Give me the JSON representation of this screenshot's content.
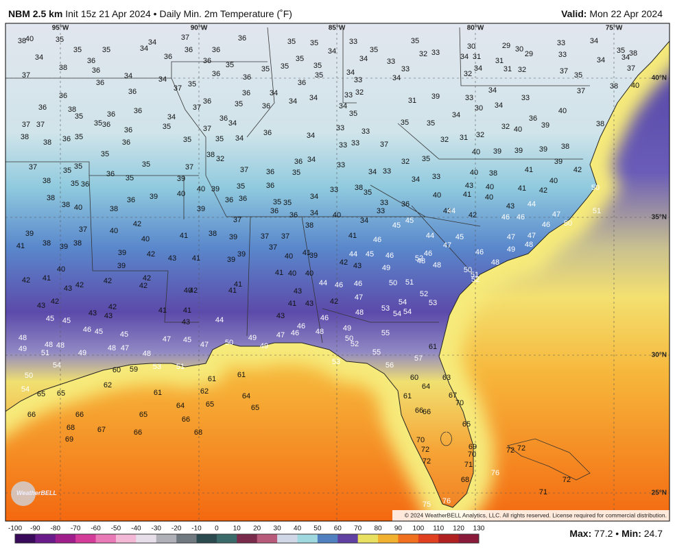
{
  "header": {
    "title": "NBM 2.5 km",
    "subtitle": "Init 15z 21 Apr 2024 • Daily Min. 2m Temperature (˚F)",
    "valid_label": "Valid:",
    "valid_date": "Mon 22 Apr 2024"
  },
  "map": {
    "longitude_labels": [
      "95°W",
      "90°W",
      "85°W",
      "80°W",
      "75°W"
    ],
    "latitude_labels": [
      "40°N",
      "35°N",
      "30°N",
      "25°N"
    ],
    "stations": [
      35,
      38,
      40,
      35,
      35,
      34,
      34,
      37,
      36,
      35,
      35,
      33,
      35,
      35,
      33,
      32,
      30,
      29,
      30,
      29,
      33,
      34,
      35,
      38,
      34,
      38,
      36,
      36,
      34,
      36,
      36,
      36,
      35,
      36,
      35,
      35,
      35,
      35,
      34,
      34,
      33,
      33,
      34,
      34,
      31,
      34,
      31,
      32,
      34,
      31,
      32,
      34,
      33,
      37,
      35,
      34,
      37,
      38,
      40,
      37,
      36,
      36,
      36,
      34,
      37,
      35,
      36,
      36,
      33,
      33,
      34,
      34,
      34,
      36,
      35,
      32,
      31,
      39,
      33,
      34,
      36,
      38,
      35,
      36,
      36,
      35,
      36,
      36,
      34,
      35,
      37,
      36,
      35,
      36,
      34,
      36,
      37,
      36,
      35,
      34,
      33,
      35,
      35,
      34,
      30,
      34,
      33,
      37,
      36,
      39,
      40,
      38,
      32,
      40,
      37,
      37,
      38,
      38,
      36,
      35,
      36,
      35,
      35,
      34,
      36,
      34,
      33,
      33,
      33,
      37,
      32,
      31,
      32,
      40,
      39,
      39,
      39,
      38,
      37,
      35,
      35,
      35,
      35,
      37,
      36,
      35,
      38,
      32,
      37,
      36,
      35,
      36,
      34,
      33,
      34,
      33,
      32,
      35,
      38,
      40,
      41,
      39,
      42,
      38,
      35,
      36,
      39,
      40,
      39,
      35,
      36,
      34,
      33,
      38,
      35,
      34,
      33,
      43,
      40,
      41,
      40,
      42,
      50,
      38,
      38,
      40,
      38,
      36,
      39,
      40,
      39,
      36,
      36,
      35,
      35,
      36,
      36,
      34,
      40,
      33,
      33,
      36,
      40,
      41,
      40,
      43,
      44,
      42,
      46,
      46,
      43,
      44,
      47,
      46,
      50,
      51,
      39,
      38,
      37,
      40,
      42,
      37,
      37,
      37,
      37,
      38,
      39,
      38,
      41,
      40,
      39,
      39,
      42,
      43,
      41,
      39,
      39,
      41,
      39,
      38,
      34,
      45,
      45,
      46,
      41,
      44,
      47,
      45,
      46,
      47,
      47,
      49,
      48,
      48,
      49,
      46,
      44,
      45,
      42,
      43,
      52,
      48,
      46,
      48,
      50,
      51,
      52,
      40,
      41,
      39,
      41,
      40,
      40,
      44,
      46,
      46,
      47,
      50,
      51,
      52,
      53,
      54,
      53,
      54,
      54,
      40,
      42,
      41,
      43,
      42,
      42,
      42,
      42,
      40,
      42,
      41,
      41,
      43,
      41,
      43,
      42,
      48,
      43,
      42,
      45,
      45,
      43,
      42,
      43,
      41,
      41,
      43,
      44,
      43,
      46,
      46,
      46,
      47,
      48,
      49,
      50,
      52,
      55,
      48,
      49,
      48,
      48,
      51,
      49,
      46,
      45,
      45,
      48,
      47,
      48,
      47,
      45,
      47,
      50,
      49,
      49,
      55,
      53,
      56,
      57,
      61,
      50,
      54,
      54,
      60,
      59,
      53,
      51,
      62,
      61,
      62,
      61,
      61,
      64,
      65,
      64,
      65,
      65,
      65,
      66,
      66,
      65,
      66,
      68,
      67,
      66,
      68,
      69,
      60,
      64,
      63,
      61,
      66,
      66,
      67,
      70,
      65,
      70,
      72,
      72,
      69,
      70,
      71,
      68,
      76,
      75,
      76,
      72,
      72,
      72,
      71
    ]
  },
  "colorbar": {
    "ticks": [
      -100,
      -90,
      -80,
      -70,
      -60,
      -50,
      -40,
      -30,
      -20,
      -10,
      0,
      10,
      20,
      30,
      40,
      50,
      60,
      70,
      80,
      90,
      100,
      110,
      120,
      130
    ]
  },
  "footer": {
    "max_label": "Max:",
    "max": 77.2,
    "separator": "•",
    "min_label": "Min:",
    "min": 24.7
  },
  "copyright": "© 2024 WeatherBELL Analytics, LLC. All rights reserved. License required for commercial distribution.",
  "logo": "WeatherBELL"
}
